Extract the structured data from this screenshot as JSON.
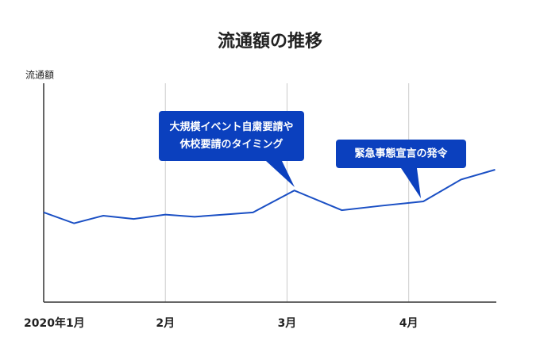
{
  "chart_data": {
    "type": "line",
    "title": "流通額の推移",
    "y_label": "流通額",
    "x": [
      1,
      1.25,
      1.49,
      1.74,
      2.0,
      2.24,
      2.48,
      2.72,
      3.06,
      3.45,
      3.77,
      4.12,
      4.43,
      4.71
    ],
    "series": [
      {
        "name": "流通額",
        "color": "#1a4fc4",
        "values": [
          41,
          36,
          39.5,
          38,
          40,
          39,
          40,
          41,
          51,
          42,
          44,
          46,
          56,
          60.5
        ]
      }
    ],
    "xlim": [
      1,
      4.72
    ],
    "xticks": [
      {
        "value": 1,
        "label": "2020年1月"
      },
      {
        "value": 2,
        "label": "2月"
      },
      {
        "value": 3,
        "label": "3月"
      },
      {
        "value": 4,
        "label": "4月"
      }
    ],
    "ylim": [
      0,
      100
    ],
    "grid": true,
    "annotations": [
      {
        "lines": [
          "大規模イベント自粛要請や",
          "休校要請のタイミング"
        ]
      },
      {
        "lines": [
          "緊急事態宣言の発令"
        ]
      }
    ]
  }
}
